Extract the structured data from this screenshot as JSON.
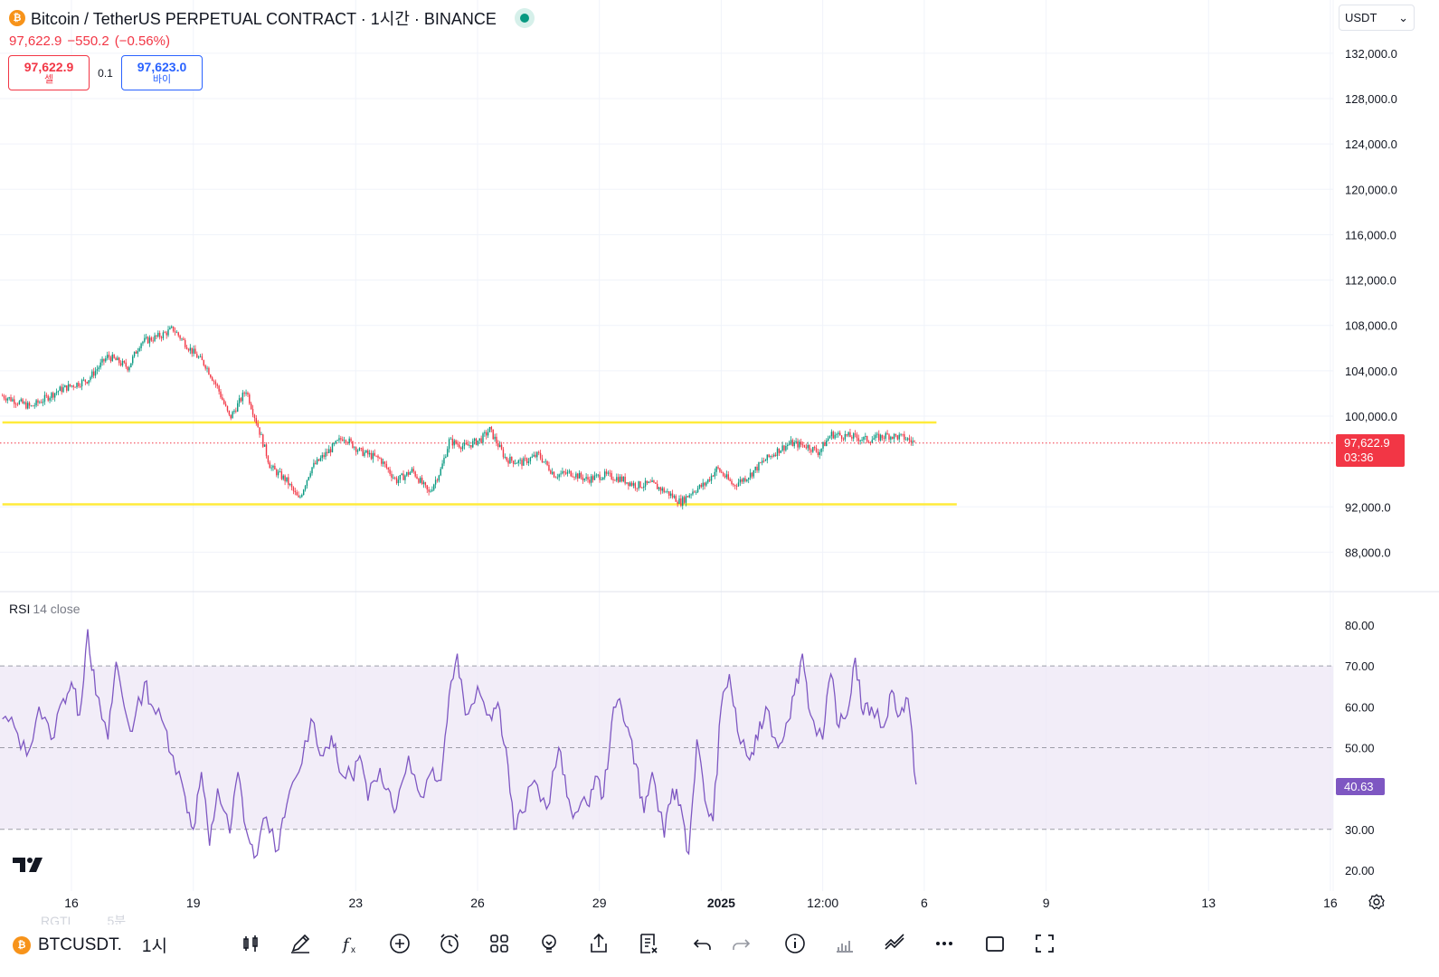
{
  "header": {
    "coin_glyph": "₿",
    "title": "Bitcoin / TetherUS PERPETUAL CONTRACT · 1시간 · BINANCE",
    "last_price": "97,622.9",
    "change": "−550.2",
    "change_pct": "(−0.56%)"
  },
  "trade": {
    "sell_price": "97,622.9",
    "sell_label": "셀",
    "spread": "0.1",
    "buy_price": "97,623.0",
    "buy_label": "바이"
  },
  "currency": {
    "value": "USDT",
    "arrow": "⌄"
  },
  "price_tag": {
    "price": "97,622.9",
    "countdown": "03:36"
  },
  "rsi": {
    "name": "RSI",
    "params": "14 close",
    "value": "40.63"
  },
  "chart_data": [
    {
      "type": "candlestick",
      "title": "",
      "y_ticks": [
        "132,000.0",
        "128,000.0",
        "124,000.0",
        "120,000.0",
        "116,000.0",
        "112,000.0",
        "108,000.0",
        "104,000.0",
        "100,000.0",
        "92,000.0",
        "88,000.0"
      ],
      "y_tick_values": [
        132000,
        128000,
        124000,
        120000,
        116000,
        112000,
        108000,
        104000,
        100000,
        92000,
        88000
      ],
      "ylim": [
        86000,
        133000
      ],
      "x_ticks": [
        "16",
        "19",
        "23",
        "26",
        "29",
        "2025",
        "12:00",
        "6",
        "9",
        "13",
        "16"
      ],
      "x_tick_days": [
        16,
        19,
        23,
        26,
        29,
        32,
        34.5,
        37,
        40,
        44,
        47
      ],
      "data_end_day": 36.8,
      "current_price": 97622.9,
      "horizontal_lines": [
        {
          "value": 99440,
          "from_day": 14.3,
          "to_day": 37.3,
          "color": "#ffeb3b"
        },
        {
          "value": 92220,
          "from_day": 14.3,
          "to_day": 37.8,
          "color": "#ffeb3b"
        }
      ],
      "close_path": [
        [
          14.3,
          101800
        ],
        [
          15.0,
          100800
        ],
        [
          15.7,
          102300
        ],
        [
          16.4,
          103200
        ],
        [
          16.9,
          105300
        ],
        [
          17.4,
          104300
        ],
        [
          17.7,
          106500
        ],
        [
          18.2,
          107100
        ],
        [
          18.5,
          107700
        ],
        [
          18.9,
          106000
        ],
        [
          19.3,
          104500
        ],
        [
          19.6,
          102500
        ],
        [
          19.9,
          99800
        ],
        [
          20.3,
          102300
        ],
        [
          20.6,
          99000
        ],
        [
          20.9,
          95500
        ],
        [
          21.3,
          94300
        ],
        [
          21.6,
          92600
        ],
        [
          21.9,
          95400
        ],
        [
          22.3,
          96800
        ],
        [
          22.7,
          98200
        ],
        [
          23.1,
          96900
        ],
        [
          23.6,
          96200
        ],
        [
          24.0,
          94300
        ],
        [
          24.4,
          95200
        ],
        [
          24.8,
          93200
        ],
        [
          25.1,
          95300
        ],
        [
          25.3,
          97800
        ],
        [
          25.7,
          97300
        ],
        [
          26.1,
          98000
        ],
        [
          26.3,
          98800
        ],
        [
          26.7,
          96200
        ],
        [
          27.1,
          95900
        ],
        [
          27.5,
          96600
        ],
        [
          27.9,
          94800
        ],
        [
          28.3,
          95000
        ],
        [
          28.7,
          94400
        ],
        [
          29.1,
          94800
        ],
        [
          29.5,
          94500
        ],
        [
          29.9,
          93900
        ],
        [
          30.3,
          94000
        ],
        [
          30.7,
          93200
        ],
        [
          31.0,
          92400
        ],
        [
          31.3,
          93400
        ],
        [
          31.6,
          94000
        ],
        [
          31.9,
          95400
        ],
        [
          32.3,
          93900
        ],
        [
          32.7,
          94800
        ],
        [
          33.0,
          95900
        ],
        [
          33.4,
          97000
        ],
        [
          33.7,
          97600
        ],
        [
          34.1,
          97400
        ],
        [
          34.4,
          96800
        ],
        [
          34.7,
          98400
        ],
        [
          35.2,
          98200
        ],
        [
          35.6,
          97900
        ],
        [
          36.1,
          98300
        ],
        [
          36.5,
          98100
        ],
        [
          36.8,
          97600
        ]
      ]
    },
    {
      "type": "line",
      "title": "RSI",
      "series_name": "RSI 14 close",
      "y_ticks": [
        "80.00",
        "70.00",
        "60.00",
        "50.00",
        "30.00",
        "20.00"
      ],
      "y_tick_values": [
        80,
        70,
        60,
        50,
        30,
        20
      ],
      "ylim": [
        17,
        82
      ],
      "band": [
        30,
        70
      ],
      "midline": 50,
      "current_value": 40.63,
      "path": [
        [
          14.3,
          57
        ],
        [
          14.6,
          55
        ],
        [
          14.9,
          48
        ],
        [
          15.2,
          60
        ],
        [
          15.5,
          52
        ],
        [
          15.8,
          62
        ],
        [
          16.0,
          66
        ],
        [
          16.2,
          58
        ],
        [
          16.4,
          79
        ],
        [
          16.6,
          63
        ],
        [
          16.9,
          52
        ],
        [
          17.1,
          71
        ],
        [
          17.3,
          60
        ],
        [
          17.5,
          54
        ],
        [
          17.8,
          66
        ],
        [
          18.0,
          60
        ],
        [
          18.3,
          55
        ],
        [
          18.5,
          48
        ],
        [
          18.8,
          38
        ],
        [
          19.0,
          30
        ],
        [
          19.2,
          44
        ],
        [
          19.4,
          26
        ],
        [
          19.6,
          40
        ],
        [
          19.9,
          29
        ],
        [
          20.1,
          44
        ],
        [
          20.3,
          30
        ],
        [
          20.5,
          23
        ],
        [
          20.8,
          33
        ],
        [
          21.1,
          25
        ],
        [
          21.3,
          36
        ],
        [
          21.6,
          44
        ],
        [
          21.9,
          57
        ],
        [
          22.2,
          48
        ],
        [
          22.4,
          53
        ],
        [
          22.6,
          44
        ],
        [
          22.9,
          43
        ],
        [
          23.1,
          48
        ],
        [
          23.3,
          37
        ],
        [
          23.6,
          45
        ],
        [
          23.8,
          40
        ],
        [
          24.0,
          35
        ],
        [
          24.3,
          48
        ],
        [
          24.6,
          38
        ],
        [
          24.9,
          45
        ],
        [
          25.1,
          42
        ],
        [
          25.3,
          63
        ],
        [
          25.5,
          73
        ],
        [
          25.7,
          58
        ],
        [
          26.0,
          65
        ],
        [
          26.3,
          58
        ],
        [
          26.5,
          61
        ],
        [
          26.7,
          50
        ],
        [
          26.9,
          30
        ],
        [
          27.1,
          34
        ],
        [
          27.4,
          42
        ],
        [
          27.7,
          35
        ],
        [
          28.0,
          50
        ],
        [
          28.2,
          38
        ],
        [
          28.4,
          34
        ],
        [
          28.7,
          36
        ],
        [
          28.9,
          43
        ],
        [
          29.1,
          38
        ],
        [
          29.3,
          56
        ],
        [
          29.5,
          62
        ],
        [
          29.7,
          55
        ],
        [
          29.9,
          46
        ],
        [
          30.1,
          34
        ],
        [
          30.3,
          44
        ],
        [
          30.6,
          28
        ],
        [
          30.8,
          40
        ],
        [
          31.0,
          36
        ],
        [
          31.2,
          24
        ],
        [
          31.4,
          52
        ],
        [
          31.6,
          37
        ],
        [
          31.8,
          32
        ],
        [
          32.0,
          60
        ],
        [
          32.2,
          68
        ],
        [
          32.4,
          54
        ],
        [
          32.7,
          47
        ],
        [
          32.9,
          52
        ],
        [
          33.1,
          60
        ],
        [
          33.4,
          50
        ],
        [
          33.6,
          56
        ],
        [
          33.8,
          63
        ],
        [
          34.0,
          73
        ],
        [
          34.2,
          58
        ],
        [
          34.5,
          52
        ],
        [
          34.7,
          68
        ],
        [
          34.9,
          55
        ],
        [
          35.1,
          58
        ],
        [
          35.3,
          72
        ],
        [
          35.5,
          58
        ],
        [
          35.7,
          60
        ],
        [
          36.0,
          55
        ],
        [
          36.2,
          64
        ],
        [
          36.4,
          58
        ],
        [
          36.6,
          62
        ],
        [
          36.8,
          41
        ]
      ]
    }
  ],
  "toolbar": {
    "symbol": "BTCUSDT.",
    "timeframe": "1시",
    "ghost_symbol": "RGTI",
    "ghost_timeframe": "5분",
    "tools": [
      "candles-icon",
      "pen-icon",
      "fx-icon",
      "plus-circle-icon",
      "alarm-icon",
      "grid-icon",
      "bulb-icon",
      "share-icon",
      "watchlist-icon",
      "undo-icon",
      "redo-icon",
      "info-icon",
      "bar-chart-icon",
      "trend-lines-icon",
      "more-icon",
      "square-icon",
      "fullscreen-icon"
    ]
  },
  "colors": {
    "up": "#089981",
    "down": "#f23645",
    "level_line": "#ffeb3b",
    "rsi_line": "#7e57c2",
    "rsi_band": "#ede7f6"
  }
}
